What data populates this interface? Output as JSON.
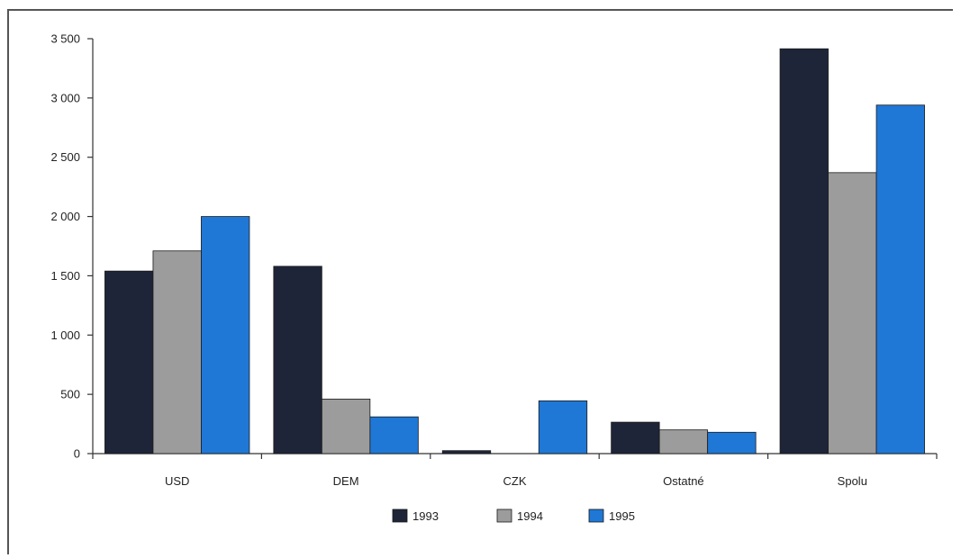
{
  "chart_data": {
    "type": "bar",
    "categories": [
      "USD",
      "DEM",
      "CZK",
      "Ostatné",
      "Spolu"
    ],
    "series": [
      {
        "name": "1993",
        "color": "#1e2538",
        "values": [
          1540,
          1580,
          25,
          265,
          3415
        ]
      },
      {
        "name": "1994",
        "color": "#9c9c9c",
        "values": [
          1710,
          460,
          0,
          200,
          2370
        ]
      },
      {
        "name": "1995",
        "color": "#1f78d6",
        "values": [
          2000,
          310,
          445,
          180,
          2940
        ]
      }
    ],
    "yticks": [
      0,
      500,
      1000,
      1500,
      2000,
      2500,
      3000,
      3500
    ],
    "ytick_labels": [
      "0",
      "500",
      "1 000",
      "1 500",
      "2 000",
      "2 500",
      "3 000",
      "3 500"
    ],
    "ylim": [
      0,
      3500
    ],
    "grid": false,
    "legend_position": "bottom-center",
    "title": "",
    "xlabel": "",
    "ylabel": ""
  }
}
